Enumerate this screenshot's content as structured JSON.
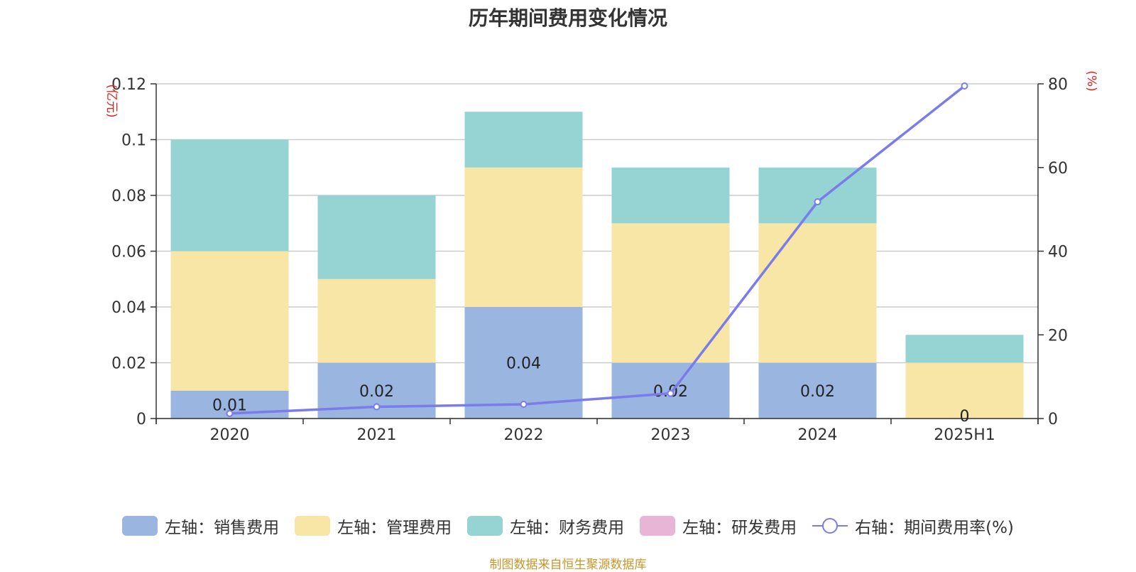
{
  "chart_data": {
    "type": "bar",
    "stacked": true,
    "title": "历年期间费用变化情况",
    "categories": [
      "2020",
      "2021",
      "2022",
      "2023",
      "2024",
      "2025H1"
    ],
    "left_axis": {
      "unit_label": "(亿元)",
      "ylim": [
        0,
        0.12
      ],
      "ticks": [
        "0",
        "0.02",
        "0.04",
        "0.06",
        "0.08",
        "0.1",
        "0.12"
      ]
    },
    "right_axis": {
      "unit_label": "(%)",
      "ylim": [
        0,
        80
      ],
      "ticks": [
        "0",
        "20",
        "40",
        "60",
        "80"
      ]
    },
    "series": [
      {
        "name": "左轴：销售费用",
        "axis": "left",
        "color": "#9ab5e0",
        "values": [
          0.01,
          0.02,
          0.04,
          0.02,
          0.02,
          0
        ],
        "labels": [
          "0.01",
          "0.02",
          "0.04",
          "0.02",
          "0.02",
          "0"
        ]
      },
      {
        "name": "左轴：管理费用",
        "axis": "left",
        "color": "#f7e6a6",
        "values": [
          0.05,
          0.03,
          0.05,
          0.05,
          0.05,
          0.02
        ]
      },
      {
        "name": "左轴：财务费用",
        "axis": "left",
        "color": "#96d3d3",
        "values": [
          0.04,
          0.03,
          0.02,
          0.02,
          0.02,
          0.01
        ]
      },
      {
        "name": "左轴：研发费用",
        "axis": "left",
        "color": "#e8b5d6",
        "values": [
          0,
          0,
          0,
          0,
          0,
          0
        ]
      },
      {
        "name": "右轴：期间费用率(%)",
        "axis": "right",
        "type": "line",
        "color": "#7b7cec",
        "values": [
          1.2,
          2.8,
          3.4,
          6.0,
          51.8,
          79.5
        ]
      }
    ],
    "grid": true,
    "legend_position": "bottom"
  },
  "source_note": "制图数据来自恒生聚源数据库"
}
